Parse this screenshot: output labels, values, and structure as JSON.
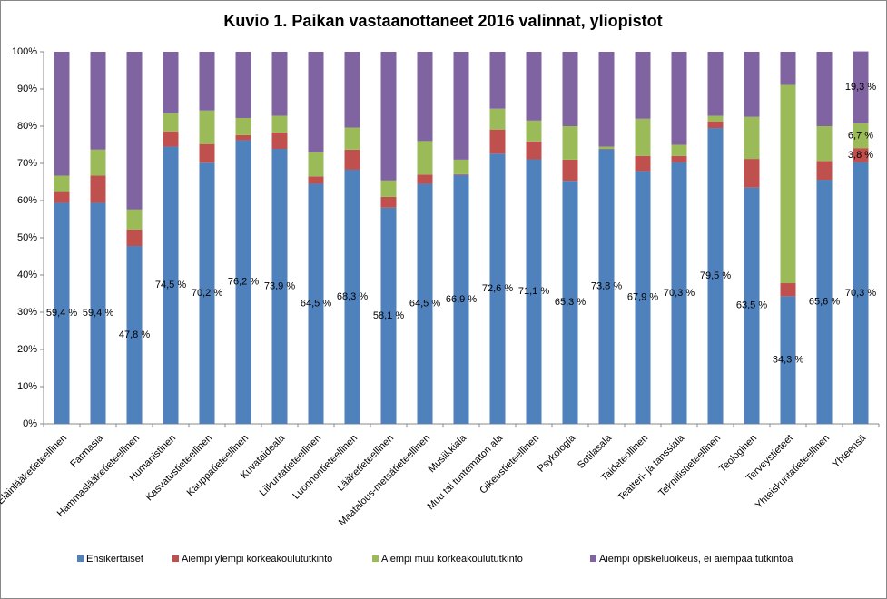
{
  "chart_data": {
    "type": "stacked-bar",
    "title": "Kuvio 1. Paikan vastaanottaneet 2016 valinnat, yliopistot",
    "categories": [
      "Eläinlääketieteellinen",
      "Farmasia",
      "Hammaslääketieteellinen",
      "Humanistinen",
      "Kasvatustieteellinen",
      "Kauppatieteellinen",
      "Kuvataideala",
      "Liikuntatieteellinen",
      "Luonnontieteellinen",
      "Lääketieteellinen",
      "Maatalous-metsätieteellinen",
      "Musiikkiala",
      "Muu tai tuntematon ala",
      "Oikeustieteellinen",
      "Psykologia",
      "Sotilasala",
      "Taideteollinen",
      "Teatteri- ja tanssiala",
      "Teknillistieteellinen",
      "Teologinen",
      "Terveystieteet",
      "Yhteiskuntatieteellinen",
      "Yhteensä"
    ],
    "series": [
      {
        "name": "Ensikertaiset",
        "color": "#4f81bd",
        "values": [
          59.4,
          59.4,
          47.8,
          74.5,
          70.2,
          76.2,
          73.9,
          64.5,
          68.3,
          58.1,
          64.5,
          66.9,
          72.6,
          71.1,
          65.3,
          73.8,
          67.9,
          70.3,
          79.5,
          63.5,
          34.3,
          65.6,
          70.3
        ],
        "value_labels": [
          "59,4 %",
          "59,4 %",
          "47,8 %",
          "74,5 %",
          "70,2 %",
          "76,2 %",
          "73,9 %",
          "64,5 %",
          "68,3 %",
          "58,1 %",
          "64,5 %",
          "66,9 %",
          "72,6 %",
          "71,1 %",
          "65,3 %",
          "73,8 %",
          "67,9 %",
          "70,3 %",
          "79,5 %",
          "63,5 %",
          "34,3 %",
          "65,6 %",
          "70,3 %"
        ]
      },
      {
        "name": "Aiempi ylempi korkeakoulututkinto",
        "color": "#c0504d",
        "values": [
          2.9,
          7.3,
          4.4,
          4.1,
          5.0,
          1.4,
          4.4,
          2.0,
          5.4,
          2.9,
          2.5,
          0.2,
          6.5,
          4.8,
          5.7,
          0.1,
          4.1,
          1.7,
          1.8,
          7.7,
          3.5,
          5.0,
          3.8
        ],
        "value_labels": [
          null,
          null,
          null,
          null,
          null,
          null,
          null,
          null,
          null,
          null,
          null,
          null,
          null,
          null,
          null,
          null,
          null,
          null,
          null,
          null,
          null,
          null,
          "3,8 %"
        ]
      },
      {
        "name": "Aiempi muu korkeakoulututkinto",
        "color": "#9bbb59",
        "values": [
          4.4,
          7.0,
          5.4,
          4.9,
          9.0,
          4.6,
          4.5,
          6.5,
          5.9,
          4.4,
          9.0,
          3.9,
          5.6,
          5.6,
          9.0,
          0.6,
          10.0,
          3.0,
          1.5,
          11.3,
          53.3,
          9.4,
          6.7
        ],
        "value_labels": [
          null,
          null,
          null,
          null,
          null,
          null,
          null,
          null,
          null,
          null,
          null,
          null,
          null,
          null,
          null,
          null,
          null,
          null,
          null,
          null,
          null,
          null,
          "6,7 %"
        ]
      },
      {
        "name": "Aiempi opiskeluoikeus, ei aiempaa tutkintoa",
        "color": "#8064a2",
        "values": [
          33.3,
          26.3,
          42.4,
          16.5,
          15.8,
          17.8,
          17.2,
          27.0,
          20.4,
          34.6,
          24.0,
          29.0,
          15.3,
          18.5,
          20.0,
          25.5,
          18.0,
          25.0,
          17.2,
          17.5,
          8.9,
          20.0,
          19.3
        ],
        "value_labels": [
          null,
          null,
          null,
          null,
          null,
          null,
          null,
          null,
          null,
          null,
          null,
          null,
          null,
          null,
          null,
          null,
          null,
          null,
          null,
          null,
          null,
          null,
          "19,3 %"
        ]
      }
    ],
    "ylim": [
      0,
      100
    ],
    "yticks": [
      {
        "value": 0,
        "label": "0%"
      },
      {
        "value": 10,
        "label": "10%"
      },
      {
        "value": 20,
        "label": "20%"
      },
      {
        "value": 30,
        "label": "30%"
      },
      {
        "value": 40,
        "label": "40%"
      },
      {
        "value": 50,
        "label": "50%"
      },
      {
        "value": 60,
        "label": "60%"
      },
      {
        "value": 70,
        "label": "70%"
      },
      {
        "value": 80,
        "label": "80%"
      },
      {
        "value": 90,
        "label": "90%"
      },
      {
        "value": 100,
        "label": "100%"
      }
    ],
    "grid": false,
    "legend": "bottom"
  }
}
